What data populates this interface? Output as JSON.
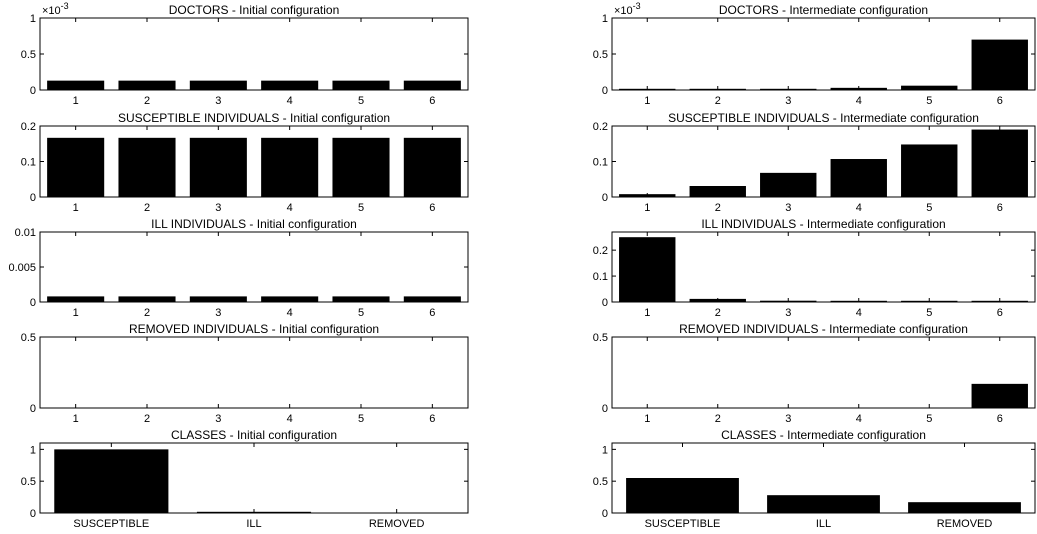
{
  "colors": {
    "bar": "#000000",
    "axis": "#000000",
    "background": "#ffffff"
  },
  "chart_data": [
    {
      "type": "bar",
      "title": "DOCTORS - Initial configuration",
      "categories": [
        "1",
        "2",
        "3",
        "4",
        "5",
        "6"
      ],
      "values": [
        0.00013,
        0.00013,
        0.00013,
        0.00013,
        0.00013,
        0.00013
      ],
      "ylim": [
        0,
        0.001
      ],
      "yticks": [
        0,
        0.0005,
        0.001
      ],
      "ytick_labels": [
        "0",
        "0.5",
        "1"
      ],
      "exponent_label": "×10",
      "exponent_power": "-3",
      "grid": false
    },
    {
      "type": "bar",
      "title": "DOCTORS - Intermediate configuration",
      "categories": [
        "1",
        "2",
        "3",
        "4",
        "5",
        "6"
      ],
      "values": [
        5e-06,
        8e-06,
        1.5e-05,
        3e-05,
        6e-05,
        0.0007
      ],
      "ylim": [
        0,
        0.001
      ],
      "yticks": [
        0,
        0.0005,
        0.001
      ],
      "ytick_labels": [
        "0",
        "0.5",
        "1"
      ],
      "exponent_label": "×10",
      "exponent_power": "-3",
      "grid": false
    },
    {
      "type": "bar",
      "title": "SUSCEPTIBLE INDIVIDUALS - Initial configuration",
      "categories": [
        "1",
        "2",
        "3",
        "4",
        "5",
        "6"
      ],
      "values": [
        0.1667,
        0.1667,
        0.1667,
        0.1667,
        0.1667,
        0.1667
      ],
      "ylim": [
        0,
        0.2
      ],
      "yticks": [
        0,
        0.1,
        0.2
      ],
      "ytick_labels": [
        "0",
        "0.1",
        "0.2"
      ],
      "grid": false
    },
    {
      "type": "bar",
      "title": "SUSCEPTIBLE INDIVIDUALS - Intermediate configuration",
      "categories": [
        "1",
        "2",
        "3",
        "4",
        "5",
        "6"
      ],
      "values": [
        0.008,
        0.031,
        0.068,
        0.107,
        0.148,
        0.19
      ],
      "ylim": [
        0,
        0.2
      ],
      "yticks": [
        0,
        0.1,
        0.2
      ],
      "ytick_labels": [
        "0",
        "0.1",
        "0.2"
      ],
      "grid": false
    },
    {
      "type": "bar",
      "title": "ILL INDIVIDUALS - Initial configuration",
      "categories": [
        "1",
        "2",
        "3",
        "4",
        "5",
        "6"
      ],
      "values": [
        0.0008,
        0.0008,
        0.0008,
        0.0008,
        0.0008,
        0.0008
      ],
      "ylim": [
        0,
        0.01
      ],
      "yticks": [
        0,
        0.005,
        0.01
      ],
      "ytick_labels": [
        "0",
        "0.005",
        "0.01"
      ],
      "grid": false
    },
    {
      "type": "bar",
      "title": "ILL INDIVIDUALS - Intermediate configuration",
      "categories": [
        "1",
        "2",
        "3",
        "4",
        "5",
        "6"
      ],
      "values": [
        0.25,
        0.012,
        0.005,
        0.003,
        0.002,
        0.0015
      ],
      "ylim": [
        0,
        0.27
      ],
      "yticks": [
        0,
        0.1,
        0.2
      ],
      "ytick_labels": [
        "0",
        "0.1",
        "0.2"
      ],
      "grid": false
    },
    {
      "type": "bar",
      "title": "REMOVED INDIVIDUALS - Initial configuration",
      "categories": [
        "1",
        "2",
        "3",
        "4",
        "5",
        "6"
      ],
      "values": [
        0,
        0,
        0,
        0,
        0,
        0
      ],
      "ylim": [
        0,
        0.5
      ],
      "yticks": [
        0,
        0.5
      ],
      "ytick_labels": [
        "0",
        "0.5"
      ],
      "grid": false
    },
    {
      "type": "bar",
      "title": "REMOVED INDIVIDUALS - Intermediate configuration",
      "categories": [
        "1",
        "2",
        "3",
        "4",
        "5",
        "6"
      ],
      "values": [
        0,
        0,
        0,
        0,
        0,
        0.17
      ],
      "ylim": [
        0,
        0.5
      ],
      "yticks": [
        0,
        0.5
      ],
      "ytick_labels": [
        "0",
        "0.5"
      ],
      "grid": false
    },
    {
      "type": "bar",
      "title": "CLASSES - Initial configuration",
      "categories": [
        "SUSCEPTIBLE",
        "ILL",
        "REMOVED"
      ],
      "values": [
        1.0,
        0.005,
        0
      ],
      "ylim": [
        0,
        1.1
      ],
      "yticks": [
        0,
        0.5,
        1
      ],
      "ytick_labels": [
        "0",
        "0.5",
        "1"
      ],
      "grid": false
    },
    {
      "type": "bar",
      "title": "CLASSES - Intermediate configuration",
      "categories": [
        "SUSCEPTIBLE",
        "ILL",
        "REMOVED"
      ],
      "values": [
        0.55,
        0.28,
        0.17
      ],
      "ylim": [
        0,
        1.1
      ],
      "yticks": [
        0,
        0.5,
        1
      ],
      "ytick_labels": [
        "0",
        "0.5",
        "1"
      ],
      "grid": false
    }
  ]
}
